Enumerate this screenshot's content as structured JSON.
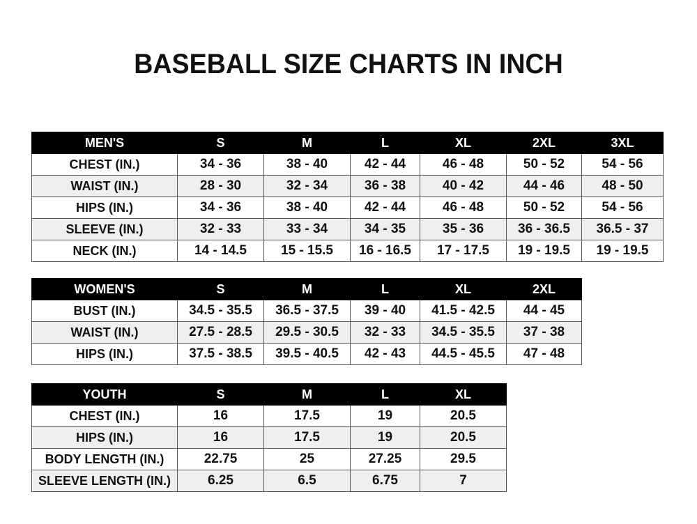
{
  "title": "BASEBALL SIZE CHARTS IN INCH",
  "men": {
    "header": [
      "MEN'S",
      "S",
      "M",
      "L",
      "XL",
      "2XL",
      "3XL"
    ],
    "rows": [
      [
        "CHEST (IN.)",
        "34 - 36",
        "38 - 40",
        "42 - 44",
        "46 - 48",
        "50 - 52",
        "54 - 56"
      ],
      [
        "WAIST (IN.)",
        "28 - 30",
        "32 - 34",
        "36 - 38",
        "40 - 42",
        "44 - 46",
        "48 - 50"
      ],
      [
        "HIPS (IN.)",
        "34 - 36",
        "38 - 40",
        "42 - 44",
        "46 - 48",
        "50 - 52",
        "54 - 56"
      ],
      [
        "SLEEVE (IN.)",
        "32 - 33",
        "33 - 34",
        "34 - 35",
        "35 - 36",
        "36 - 36.5",
        "36.5 - 37"
      ],
      [
        "NECK (IN.)",
        "14 - 14.5",
        "15 - 15.5",
        "16 - 16.5",
        "17 - 17.5",
        "19 - 19.5",
        "19 - 19.5"
      ]
    ]
  },
  "women": {
    "header": [
      "WOMEN'S",
      "S",
      "M",
      "L",
      "XL",
      "2XL"
    ],
    "rows": [
      [
        "BUST (IN.)",
        "34.5 - 35.5",
        "36.5 - 37.5",
        "39 - 40",
        "41.5 - 42.5",
        "44 - 45"
      ],
      [
        "WAIST (IN.)",
        "27.5 - 28.5",
        "29.5 - 30.5",
        "32 - 33",
        "34.5 - 35.5",
        "37 - 38"
      ],
      [
        "HIPS (IN.)",
        "37.5 - 38.5",
        "39.5 - 40.5",
        "42 - 43",
        "44.5 - 45.5",
        "47 - 48"
      ]
    ]
  },
  "youth": {
    "header": [
      "YOUTH",
      "S",
      "M",
      "L",
      "XL"
    ],
    "rows": [
      [
        "CHEST (IN.)",
        "16",
        "17.5",
        "19",
        "20.5"
      ],
      [
        "HIPS (IN.)",
        "16",
        "17.5",
        "19",
        "20.5"
      ],
      [
        "BODY LENGTH (IN.)",
        "22.75",
        "25",
        "27.25",
        "29.5"
      ],
      [
        "SLEEVE LENGTH (IN.)",
        "6.25",
        "6.5",
        "6.75",
        "7"
      ]
    ]
  }
}
